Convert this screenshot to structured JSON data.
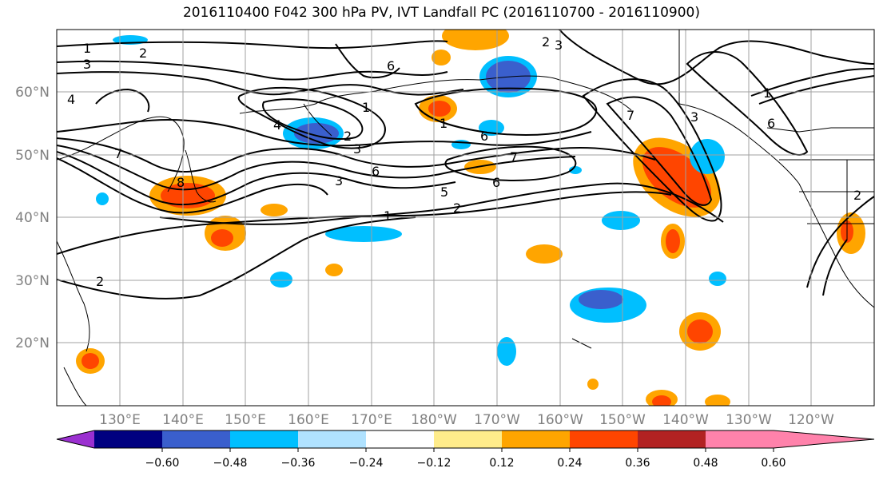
{
  "title": "2016110400 F042 300 hPa PV, IVT Landfall PC (2016110700 - 2016110900)",
  "lat_labels": [
    "60°N",
    "50°N",
    "40°N",
    "30°N",
    "20°N"
  ],
  "lon_labels": [
    "130°E",
    "140°E",
    "150°E",
    "160°E",
    "170°E",
    "180°W",
    "170°W",
    "160°W",
    "150°W",
    "140°W",
    "130°W",
    "120°W"
  ],
  "colorbar": {
    "ticks": [
      "−0.60",
      "−0.48",
      "−0.36",
      "−0.24",
      "−0.12",
      "0.12",
      "0.24",
      "0.36",
      "0.48",
      "0.60"
    ],
    "colors": [
      "#9b30d0",
      "#000080",
      "#3a5fcd",
      "#00bfff",
      "#b0e2ff",
      "#ffffff",
      "#ffec8b",
      "#ffa500",
      "#ff4500",
      "#b22222",
      "#ff82ab"
    ]
  },
  "contour_labels": [
    "1",
    "2",
    "3",
    "4",
    "1",
    "2",
    "3",
    "4",
    "6",
    "7",
    "6",
    "5",
    "2",
    "1",
    "2",
    "1",
    "3",
    "8",
    "7",
    "6",
    "6",
    "1",
    "3",
    "6",
    "7",
    "2",
    "2",
    "3"
  ]
}
